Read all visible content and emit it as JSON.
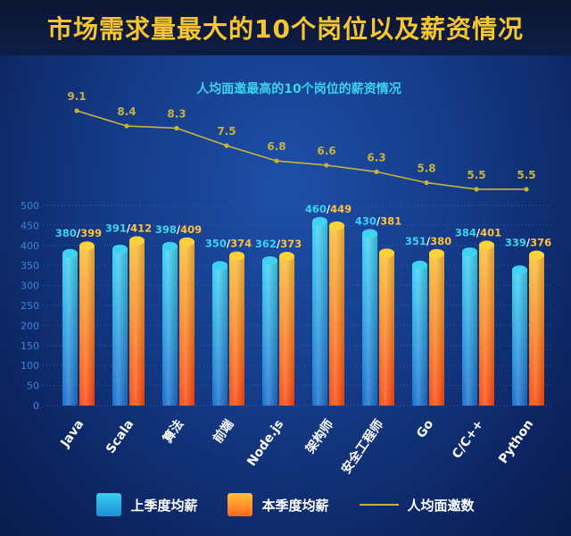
{
  "header": {
    "title": "市场需求量最大的10个岗位以及薪资情况"
  },
  "legend": {
    "prev": "上季度均薪",
    "cur": "本季度均薪",
    "line": "人均面邀数"
  },
  "colors": {
    "prev_top": "#3fd3f2",
    "prev_bottom": "#1a6fcf",
    "cur_top": "#ffd23a",
    "cur_bottom": "#ff4a12",
    "line": "#c9b23a",
    "title": "#f7c530",
    "subtitle": "#3ad3f0"
  },
  "chart_data": [
    {
      "type": "line",
      "title": "人均面邀最高的10个岗位的薪资情况",
      "categories": [
        "Java",
        "Scala",
        "算法",
        "前端",
        "Node.js",
        "架构师",
        "安全工程师",
        "Go",
        "C/C++",
        "Python"
      ],
      "series": [
        {
          "name": "人均面邀数",
          "values": [
            9.1,
            8.4,
            8.3,
            7.5,
            6.8,
            6.6,
            6.3,
            5.8,
            5.5,
            5.5
          ]
        }
      ]
    },
    {
      "type": "bar",
      "categories": [
        "Java",
        "Scala",
        "算法",
        "前端",
        "Node.js",
        "架构师",
        "安全工程师",
        "Go",
        "C/C++",
        "Python"
      ],
      "series": [
        {
          "name": "上季度均薪",
          "values": [
            380,
            391,
            398,
            350,
            362,
            460,
            430,
            351,
            384,
            339
          ]
        },
        {
          "name": "本季度均薪",
          "values": [
            399,
            412,
            409,
            374,
            373,
            449,
            381,
            380,
            401,
            376
          ]
        }
      ],
      "yticks": [
        0,
        50,
        100,
        150,
        200,
        250,
        300,
        350,
        400,
        450,
        500
      ],
      "ylim": [
        0,
        500
      ]
    }
  ]
}
